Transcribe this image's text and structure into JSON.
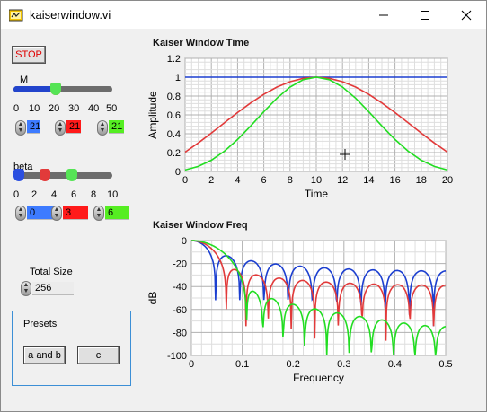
{
  "window": {
    "title": "kaiserwindow.vi"
  },
  "controls": {
    "stop_label": "STOP",
    "m": {
      "label": "M",
      "ticks": [
        "0",
        "10",
        "20",
        "30",
        "40",
        "50"
      ],
      "min": 0,
      "max": 50,
      "value_blue": 21,
      "value_red": 21,
      "value_green": 21,
      "display": [
        "21",
        "21",
        "21"
      ]
    },
    "beta": {
      "label": "beta",
      "ticks": [
        "0",
        "2",
        "4",
        "6",
        "8",
        "10"
      ],
      "min": 0,
      "max": 10,
      "value_blue": 0,
      "value_red": 3,
      "value_green": 6,
      "display": [
        "0",
        "3",
        "6"
      ]
    },
    "total_size": {
      "label": "Total Size",
      "value": "256"
    },
    "presets": {
      "label": "Presets",
      "button_a": "a and b",
      "button_c": "c"
    }
  },
  "colors": {
    "blue": "#1c3fd0",
    "red": "#e23a3a",
    "green": "#22dd22",
    "stop_text": "#e00000"
  },
  "chart_data": [
    {
      "type": "line",
      "title": "Kaiser Window Time",
      "xlabel": "Time",
      "ylabel": "Amplitude",
      "xlim": [
        0,
        20
      ],
      "ylim": [
        0,
        1.2
      ],
      "x_ticks": [
        "0",
        "2",
        "4",
        "6",
        "8",
        "10",
        "12",
        "14",
        "16",
        "18",
        "20"
      ],
      "y_ticks": [
        "0",
        "0.2",
        "0.4",
        "0.6",
        "0.8",
        "1",
        "1.2"
      ],
      "grid": true,
      "series": [
        {
          "color": "blue",
          "kind": "kaiser",
          "beta": 0
        },
        {
          "color": "red",
          "kind": "kaiser",
          "beta": 3
        },
        {
          "color": "green",
          "kind": "kaiser",
          "beta": 6
        }
      ]
    },
    {
      "type": "line",
      "title": "Kaiser Window Freq",
      "xlabel": "Frequency",
      "ylabel": "dB",
      "xlim": [
        0,
        0.5
      ],
      "ylim": [
        -100,
        0
      ],
      "x_ticks": [
        "0",
        "0.1",
        "0.2",
        "0.3",
        "0.4",
        "0.5"
      ],
      "y_ticks": [
        "0",
        "-20",
        "-40",
        "-60",
        "-80",
        "-100"
      ],
      "grid": true,
      "series": [
        {
          "color": "blue",
          "kind": "kaiser-spectrum",
          "beta": 0
        },
        {
          "color": "red",
          "kind": "kaiser-spectrum",
          "beta": 3
        },
        {
          "color": "green",
          "kind": "kaiser-spectrum",
          "beta": 6
        }
      ]
    }
  ]
}
